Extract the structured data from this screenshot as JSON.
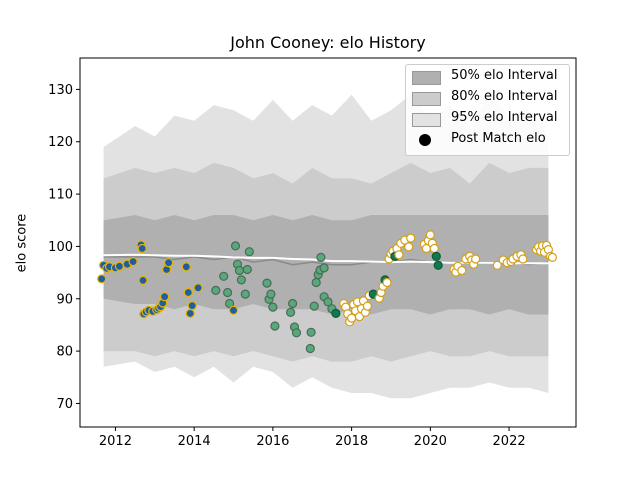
{
  "chart_data": {
    "type": "scatter",
    "title": "John Cooney: elo History",
    "xlabel": "",
    "ylabel": "elo score",
    "xlim": [
      2011.1,
      2023.7
    ],
    "ylim": [
      65.5,
      136
    ],
    "xticks": [
      2012,
      2014,
      2016,
      2018,
      2020,
      2022
    ],
    "yticks": [
      70,
      80,
      90,
      100,
      110,
      120,
      130
    ],
    "grid": false,
    "legend_position": "top-right",
    "legend": [
      {
        "label": "50% elo Interval",
        "color": "#b0b0b0",
        "kind": "band"
      },
      {
        "label": "80% elo Interval",
        "color": "#cccccc",
        "kind": "band"
      },
      {
        "label": "95% elo Interval",
        "color": "#e2e2e2",
        "kind": "band"
      },
      {
        "label": "Post Match elo",
        "color": "#000000",
        "kind": "marker"
      }
    ],
    "bands": {
      "x": [
        2011.7,
        2012.5,
        2013.0,
        2013.5,
        2014.0,
        2014.5,
        2015.0,
        2015.5,
        2016.0,
        2016.5,
        2017.0,
        2017.5,
        2018.0,
        2018.5,
        2019.0,
        2019.5,
        2020.0,
        2020.5,
        2021.0,
        2021.5,
        2022.0,
        2022.5,
        2023.0
      ],
      "p95_high": [
        119,
        123,
        121,
        125,
        124,
        127,
        126,
        124,
        128,
        124,
        127,
        125,
        129,
        124,
        126,
        129,
        124,
        127,
        123,
        129,
        125,
        126,
        121
      ],
      "p95_low": [
        77,
        78,
        76,
        77,
        75,
        77,
        74,
        77,
        76,
        73,
        75,
        73,
        72,
        72,
        71,
        71,
        72,
        73,
        73,
        74,
        73,
        73,
        72
      ],
      "p80_high": [
        113,
        115,
        114,
        115,
        114,
        116,
        115,
        113,
        114,
        112,
        115,
        113,
        113,
        112,
        114,
        116,
        114,
        115,
        112,
        116,
        114,
        115,
        115
      ],
      "p80_low": [
        80,
        80,
        79,
        80,
        79,
        80,
        79,
        80,
        79,
        78,
        79,
        78,
        78,
        79,
        78,
        79,
        80,
        79,
        79,
        80,
        79,
        79,
        79
      ],
      "p50_high": [
        105,
        106,
        105,
        106,
        105,
        106,
        106,
        105,
        106,
        105,
        106,
        105,
        105,
        106,
        106,
        106,
        106,
        106,
        106,
        106,
        106,
        106,
        106
      ],
      "p50_low": [
        90,
        89,
        89,
        88,
        89,
        88,
        88,
        89,
        88,
        88,
        88,
        87,
        88,
        87,
        88,
        88,
        87,
        88,
        88,
        87,
        88,
        87,
        87
      ],
      "median": [
        98,
        98,
        98,
        97.5,
        98,
        97.5,
        98,
        97,
        97.5,
        96.5,
        97,
        96.5,
        96.5,
        97,
        97,
        97.5,
        97,
        97,
        97,
        97,
        97,
        96.5,
        97
      ],
      "smooth_mean": [
        98.3,
        98.4,
        98.3,
        98.2,
        98.2,
        98.1,
        97.9,
        97.8,
        97.8,
        97.6,
        97.5,
        97.2,
        97.2,
        97.1,
        97.0,
        97.1,
        97.0,
        96.9,
        96.9,
        96.9,
        96.8,
        96.8,
        96.8
      ]
    },
    "series": [
      {
        "name": "Post Match elo",
        "points": [
          {
            "x": 2011.65,
            "y": 93.8,
            "g": "blue"
          },
          {
            "x": 2011.7,
            "y": 96.4,
            "g": "blue"
          },
          {
            "x": 2011.78,
            "y": 95.8,
            "g": "blue"
          },
          {
            "x": 2011.85,
            "y": 96.1,
            "g": "blue"
          },
          {
            "x": 2012.0,
            "y": 95.9,
            "g": "blue"
          },
          {
            "x": 2012.1,
            "y": 96.2,
            "g": "blue"
          },
          {
            "x": 2012.3,
            "y": 96.6,
            "g": "blue"
          },
          {
            "x": 2012.45,
            "y": 97.1,
            "g": "blue"
          },
          {
            "x": 2012.65,
            "y": 100.3,
            "g": "blue"
          },
          {
            "x": 2012.68,
            "y": 99.6,
            "g": "blue"
          },
          {
            "x": 2012.7,
            "y": 93.5,
            "g": "blue"
          },
          {
            "x": 2012.72,
            "y": 87.1,
            "g": "blue"
          },
          {
            "x": 2012.78,
            "y": 87.5,
            "g": "blue"
          },
          {
            "x": 2012.85,
            "y": 87.8,
            "g": "blue"
          },
          {
            "x": 2012.95,
            "y": 87.6,
            "g": "blue"
          },
          {
            "x": 2013.05,
            "y": 87.9,
            "g": "blue"
          },
          {
            "x": 2013.1,
            "y": 88.2,
            "g": "blue"
          },
          {
            "x": 2013.15,
            "y": 88.5,
            "g": "blue"
          },
          {
            "x": 2013.2,
            "y": 89.2,
            "g": "blue"
          },
          {
            "x": 2013.25,
            "y": 90.4,
            "g": "blue"
          },
          {
            "x": 2013.3,
            "y": 95.6,
            "g": "blue"
          },
          {
            "x": 2013.35,
            "y": 96.9,
            "g": "blue"
          },
          {
            "x": 2013.8,
            "y": 96.1,
            "g": "blue"
          },
          {
            "x": 2013.85,
            "y": 91.2,
            "g": "blue"
          },
          {
            "x": 2013.9,
            "y": 87.2,
            "g": "blue"
          },
          {
            "x": 2013.95,
            "y": 88.7,
            "g": "blue"
          },
          {
            "x": 2014.1,
            "y": 92.1,
            "g": "blue"
          },
          {
            "x": 2014.55,
            "y": 91.6,
            "g": "green"
          },
          {
            "x": 2014.75,
            "y": 94.3,
            "g": "green"
          },
          {
            "x": 2014.85,
            "y": 91.2,
            "g": "green"
          },
          {
            "x": 2014.9,
            "y": 89.1,
            "g": "green"
          },
          {
            "x": 2015.0,
            "y": 87.8,
            "g": "blue"
          },
          {
            "x": 2015.05,
            "y": 100.1,
            "g": "green"
          },
          {
            "x": 2015.1,
            "y": 96.6,
            "g": "green"
          },
          {
            "x": 2015.15,
            "y": 95.4,
            "g": "green"
          },
          {
            "x": 2015.2,
            "y": 93.6,
            "g": "green"
          },
          {
            "x": 2015.3,
            "y": 90.9,
            "g": "green"
          },
          {
            "x": 2015.35,
            "y": 95.6,
            "g": "green"
          },
          {
            "x": 2015.4,
            "y": 99.0,
            "g": "green"
          },
          {
            "x": 2015.85,
            "y": 93.0,
            "g": "green"
          },
          {
            "x": 2015.9,
            "y": 89.9,
            "g": "green"
          },
          {
            "x": 2015.95,
            "y": 90.9,
            "g": "green"
          },
          {
            "x": 2016.0,
            "y": 88.4,
            "g": "green"
          },
          {
            "x": 2016.05,
            "y": 84.8,
            "g": "green"
          },
          {
            "x": 2016.45,
            "y": 87.4,
            "g": "green"
          },
          {
            "x": 2016.5,
            "y": 89.1,
            "g": "green"
          },
          {
            "x": 2016.55,
            "y": 84.6,
            "g": "green"
          },
          {
            "x": 2016.6,
            "y": 83.5,
            "g": "green"
          },
          {
            "x": 2016.95,
            "y": 80.5,
            "g": "green"
          },
          {
            "x": 2016.97,
            "y": 83.6,
            "g": "green"
          },
          {
            "x": 2017.05,
            "y": 88.6,
            "g": "green"
          },
          {
            "x": 2017.1,
            "y": 93.1,
            "g": "green"
          },
          {
            "x": 2017.15,
            "y": 94.6,
            "g": "green"
          },
          {
            "x": 2017.2,
            "y": 95.5,
            "g": "green"
          },
          {
            "x": 2017.22,
            "y": 97.9,
            "g": "green"
          },
          {
            "x": 2017.3,
            "y": 95.9,
            "g": "green"
          },
          {
            "x": 2017.3,
            "y": 90.4,
            "g": "green"
          },
          {
            "x": 2017.4,
            "y": 89.4,
            "g": "green"
          },
          {
            "x": 2017.5,
            "y": 88.1,
            "g": "green"
          },
          {
            "x": 2017.6,
            "y": 87.2,
            "g": "dark"
          },
          {
            "x": 2017.8,
            "y": 89.1,
            "g": "white"
          },
          {
            "x": 2017.85,
            "y": 88.4,
            "g": "white"
          },
          {
            "x": 2017.9,
            "y": 87.1,
            "g": "white"
          },
          {
            "x": 2017.95,
            "y": 85.6,
            "g": "white"
          },
          {
            "x": 2018.0,
            "y": 86.3,
            "g": "white"
          },
          {
            "x": 2018.05,
            "y": 88.9,
            "g": "white"
          },
          {
            "x": 2018.1,
            "y": 87.7,
            "g": "white"
          },
          {
            "x": 2018.15,
            "y": 89.4,
            "g": "white"
          },
          {
            "x": 2018.2,
            "y": 86.6,
            "g": "white"
          },
          {
            "x": 2018.25,
            "y": 88.1,
            "g": "white"
          },
          {
            "x": 2018.3,
            "y": 89.6,
            "g": "white"
          },
          {
            "x": 2018.35,
            "y": 87.4,
            "g": "white"
          },
          {
            "x": 2018.4,
            "y": 88.6,
            "g": "white"
          },
          {
            "x": 2018.45,
            "y": 90.6,
            "g": "white"
          },
          {
            "x": 2018.55,
            "y": 90.9,
            "g": "dark"
          },
          {
            "x": 2018.7,
            "y": 90.1,
            "g": "white"
          },
          {
            "x": 2018.75,
            "y": 91.2,
            "g": "white"
          },
          {
            "x": 2018.8,
            "y": 92.4,
            "g": "white"
          },
          {
            "x": 2018.85,
            "y": 93.6,
            "g": "dark"
          },
          {
            "x": 2018.9,
            "y": 93.1,
            "g": "white"
          },
          {
            "x": 2018.95,
            "y": 97.6,
            "g": "white"
          },
          {
            "x": 2019.0,
            "y": 98.6,
            "g": "white"
          },
          {
            "x": 2019.05,
            "y": 99.1,
            "g": "white"
          },
          {
            "x": 2019.1,
            "y": 98.1,
            "g": "dark"
          },
          {
            "x": 2019.15,
            "y": 99.6,
            "g": "white"
          },
          {
            "x": 2019.2,
            "y": 98.4,
            "g": "white"
          },
          {
            "x": 2019.25,
            "y": 100.6,
            "g": "white"
          },
          {
            "x": 2019.35,
            "y": 101.2,
            "g": "white"
          },
          {
            "x": 2019.45,
            "y": 99.9,
            "g": "white"
          },
          {
            "x": 2019.5,
            "y": 101.6,
            "g": "white"
          },
          {
            "x": 2019.85,
            "y": 100.4,
            "g": "white"
          },
          {
            "x": 2019.9,
            "y": 99.6,
            "g": "white"
          },
          {
            "x": 2019.95,
            "y": 101.1,
            "g": "white"
          },
          {
            "x": 2020.0,
            "y": 102.2,
            "g": "white"
          },
          {
            "x": 2020.05,
            "y": 100.6,
            "g": "white"
          },
          {
            "x": 2020.1,
            "y": 99.6,
            "g": "white"
          },
          {
            "x": 2020.15,
            "y": 98.1,
            "g": "dark"
          },
          {
            "x": 2020.2,
            "y": 96.4,
            "g": "dark"
          },
          {
            "x": 2020.6,
            "y": 95.6,
            "g": "white"
          },
          {
            "x": 2020.65,
            "y": 95.1,
            "g": "white"
          },
          {
            "x": 2020.7,
            "y": 96.2,
            "g": "white"
          },
          {
            "x": 2020.8,
            "y": 95.4,
            "g": "white"
          },
          {
            "x": 2020.9,
            "y": 97.6,
            "g": "white"
          },
          {
            "x": 2021.0,
            "y": 98.1,
            "g": "white"
          },
          {
            "x": 2021.05,
            "y": 97.4,
            "g": "white"
          },
          {
            "x": 2021.1,
            "y": 96.6,
            "g": "white"
          },
          {
            "x": 2021.15,
            "y": 97.6,
            "g": "white"
          },
          {
            "x": 2021.7,
            "y": 96.4,
            "g": "white"
          },
          {
            "x": 2021.85,
            "y": 97.4,
            "g": "white"
          },
          {
            "x": 2021.95,
            "y": 96.9,
            "g": "white"
          },
          {
            "x": 2022.05,
            "y": 97.1,
            "g": "white"
          },
          {
            "x": 2022.1,
            "y": 97.6,
            "g": "white"
          },
          {
            "x": 2022.2,
            "y": 98.1,
            "g": "white"
          },
          {
            "x": 2022.3,
            "y": 98.4,
            "g": "white"
          },
          {
            "x": 2022.35,
            "y": 97.6,
            "g": "white"
          },
          {
            "x": 2022.7,
            "y": 99.4,
            "g": "white"
          },
          {
            "x": 2022.75,
            "y": 99.9,
            "g": "white"
          },
          {
            "x": 2022.8,
            "y": 99.1,
            "g": "white"
          },
          {
            "x": 2022.85,
            "y": 100.1,
            "g": "white"
          },
          {
            "x": 2022.9,
            "y": 98.9,
            "g": "white"
          },
          {
            "x": 2022.95,
            "y": 100.2,
            "g": "white"
          },
          {
            "x": 2023.0,
            "y": 99.4,
            "g": "white"
          },
          {
            "x": 2023.05,
            "y": 98.1,
            "g": "white"
          },
          {
            "x": 2023.1,
            "y": 97.9,
            "g": "white"
          }
        ]
      }
    ],
    "marker_styles": {
      "blue": {
        "fill": "#1f5fa0",
        "stroke": "#e8b400"
      },
      "green": {
        "fill": "#5aa77a",
        "stroke": "#4a6a5a"
      },
      "dark": {
        "fill": "#0e7a4e",
        "stroke": "#0e5a3a"
      },
      "white": {
        "fill": "#ffffff",
        "stroke": "#d4a017"
      }
    }
  }
}
